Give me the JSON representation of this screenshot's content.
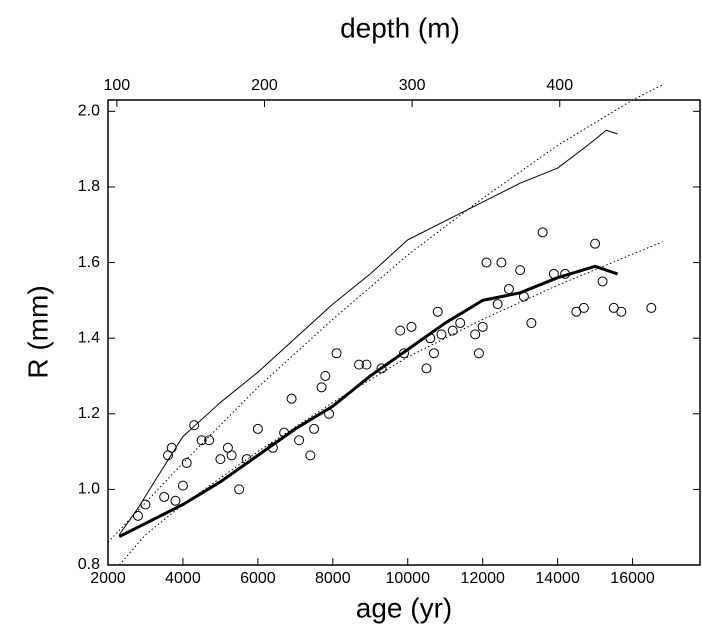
{
  "chart_data": {
    "type": "scatter",
    "xlabel": "age (yr)",
    "ylabel": "R (mm)",
    "x2label": "depth (m)",
    "xlim": [
      2000,
      17800
    ],
    "xticks": [
      2000,
      4000,
      6000,
      8000,
      10000,
      12000,
      14000,
      16000
    ],
    "ylim": [
      0.8,
      2.03
    ],
    "yticks": [
      0.8,
      {
        "value": 1.0,
        "label": "1.0"
      },
      1.2,
      1.4,
      1.6,
      1.8,
      {
        "value": 2.0,
        "label": "2.0"
      }
    ],
    "x2lim": [
      94,
      495
    ],
    "x2ticks": [
      100,
      200,
      300,
      400
    ],
    "series": [
      {
        "type": "line",
        "style": "dotted",
        "color": "#000000",
        "width": 1,
        "x": [
          2000,
          4000,
          6000,
          8000,
          10000,
          12000,
          14000,
          16000,
          16800
        ],
        "values": [
          0.86,
          1.07,
          1.27,
          1.45,
          1.62,
          1.77,
          1.91,
          2.03,
          2.07
        ]
      },
      {
        "type": "line",
        "style": "dotted",
        "color": "#000000",
        "width": 1,
        "x": [
          2300,
          3000,
          4000,
          6000,
          8000,
          10000,
          12000,
          14000,
          16800
        ],
        "values": [
          0.8,
          0.88,
          0.96,
          1.1,
          1.23,
          1.35,
          1.45,
          1.54,
          1.655
        ]
      },
      {
        "type": "line",
        "style": "solid",
        "color": "#000000",
        "width": 1,
        "x": [
          2300,
          2800,
          3300,
          4000,
          5000,
          6000,
          7000,
          8000,
          9000,
          10000,
          11000,
          12000,
          13000,
          14000,
          14800,
          15300,
          15600
        ],
        "values": [
          0.88,
          0.95,
          1.03,
          1.14,
          1.23,
          1.31,
          1.4,
          1.49,
          1.57,
          1.66,
          1.71,
          1.76,
          1.81,
          1.85,
          1.91,
          1.95,
          1.94
        ]
      },
      {
        "type": "line",
        "style": "solid",
        "color": "#000000",
        "width": 3,
        "x": [
          2300,
          3000,
          4000,
          5000,
          6000,
          7000,
          8000,
          9000,
          10000,
          11000,
          12000,
          13000,
          14000,
          15000,
          15600
        ],
        "values": [
          0.875,
          0.91,
          0.96,
          1.02,
          1.09,
          1.16,
          1.22,
          1.3,
          1.37,
          1.44,
          1.5,
          1.52,
          1.56,
          1.59,
          1.57
        ]
      },
      {
        "type": "scatter",
        "style": "open-circle",
        "color": "#000000",
        "x": [
          2800,
          3000,
          3500,
          3600,
          3700,
          3800,
          4000,
          4100,
          4300,
          4500,
          4700,
          5000,
          5200,
          5300,
          5500,
          5700,
          6000,
          6400,
          6700,
          6900,
          7100,
          7400,
          7500,
          7700,
          7800,
          7900,
          8100,
          8700,
          8900,
          9300,
          9800,
          9900,
          10100,
          10500,
          10600,
          10700,
          10800,
          10900,
          11200,
          11400,
          11800,
          11900,
          12000,
          12100,
          12400,
          12500,
          12700,
          13000,
          13100,
          13300,
          13600,
          13900,
          14200,
          14500,
          14700,
          15000,
          15200,
          15500,
          15700,
          16500
        ],
        "values": [
          0.93,
          0.96,
          0.98,
          1.09,
          1.11,
          0.97,
          1.01,
          1.07,
          1.17,
          1.13,
          1.13,
          1.08,
          1.11,
          1.09,
          1.0,
          1.08,
          1.16,
          1.11,
          1.15,
          1.24,
          1.13,
          1.09,
          1.16,
          1.27,
          1.3,
          1.2,
          1.36,
          1.33,
          1.33,
          1.32,
          1.42,
          1.36,
          1.43,
          1.32,
          1.4,
          1.36,
          1.47,
          1.41,
          1.42,
          1.44,
          1.41,
          1.36,
          1.43,
          1.6,
          1.49,
          1.6,
          1.53,
          1.58,
          1.51,
          1.44,
          1.68,
          1.57,
          1.57,
          1.47,
          1.48,
          1.65,
          1.55,
          1.48,
          1.47,
          1.48
        ]
      }
    ]
  }
}
